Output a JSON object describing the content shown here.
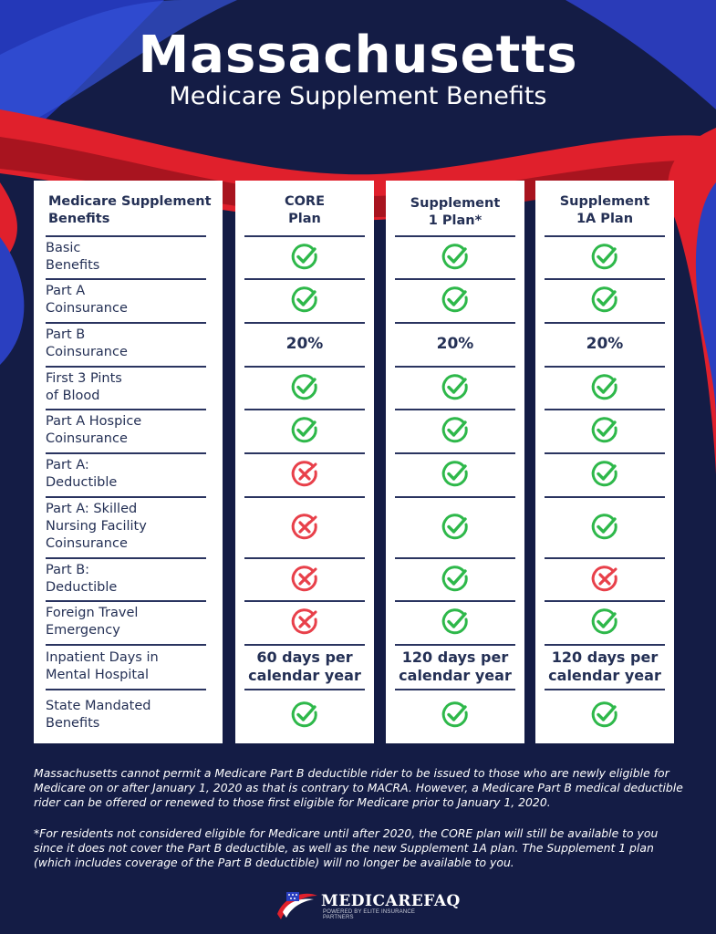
{
  "header": {
    "title": "Massachusetts",
    "subtitle": "Medicare Supplement Benefits"
  },
  "table": {
    "label_header": "Medicare Supplement\nBenefits",
    "plans": [
      {
        "name": "CORE\nPlan",
        "values": [
          "check",
          "check",
          "20%",
          "check",
          "check",
          "x",
          "x",
          "x",
          "x",
          "60 days per\ncalendar year",
          "check"
        ]
      },
      {
        "name": "Supplement\n1 Plan*",
        "values": [
          "check",
          "check",
          "20%",
          "check",
          "check",
          "check",
          "check",
          "check",
          "check",
          "120 days per\ncalendar year",
          "check"
        ]
      },
      {
        "name": "Supplement\n1A Plan",
        "values": [
          "check",
          "check",
          "20%",
          "check",
          "check",
          "check",
          "check",
          "x",
          "check",
          "120 days per\ncalendar year",
          "check"
        ]
      }
    ],
    "rows": [
      "Basic\nBenefits",
      "Part A\nCoinsurance",
      "Part B\nCoinsurance",
      "First 3 Pints\nof Blood",
      "Part A Hospice\nCoinsurance",
      "Part A:\nDeductible",
      "Part A: Skilled\nNursing Facility\nCoinsurance",
      "Part B:\nDeductible",
      "Foreign Travel\nEmergency",
      "Inpatient Days in\nMental Hospital",
      "State Mandated\nBenefits"
    ]
  },
  "notes": [
    "Massachusetts cannot permit a Medicare Part B deductible rider to be issued to those who are newly eligible for Medicare on or after January 1, 2020 as that is contrary to MACRA. However, a Medicare Part B medical deductible rider can be offered or renewed to those first eligible for Medicare prior to January 1, 2020.",
    "*For residents not considered eligible for Medicare until after 2020, the CORE plan will still be available to you since it does not cover the Part B deductible, as well as the new Supplement 1A plan. The Supplement 1 plan (which includes coverage of the Part B deductible) will no longer be available to you."
  ],
  "logo": {
    "name": "MEDICAREFAQ",
    "tagline": "POWERED BY ELITE INSURANCE PARTNERS"
  },
  "colors": {
    "background": "#141c45",
    "check_green": "#2eb84a",
    "x_red": "#e8404a",
    "text_navy": "#243055",
    "ribbon_red": "#e0202c",
    "ribbon_blue": "#2a3fc0"
  },
  "icons": {
    "check": "check-circle-icon",
    "x": "x-circle-icon"
  }
}
